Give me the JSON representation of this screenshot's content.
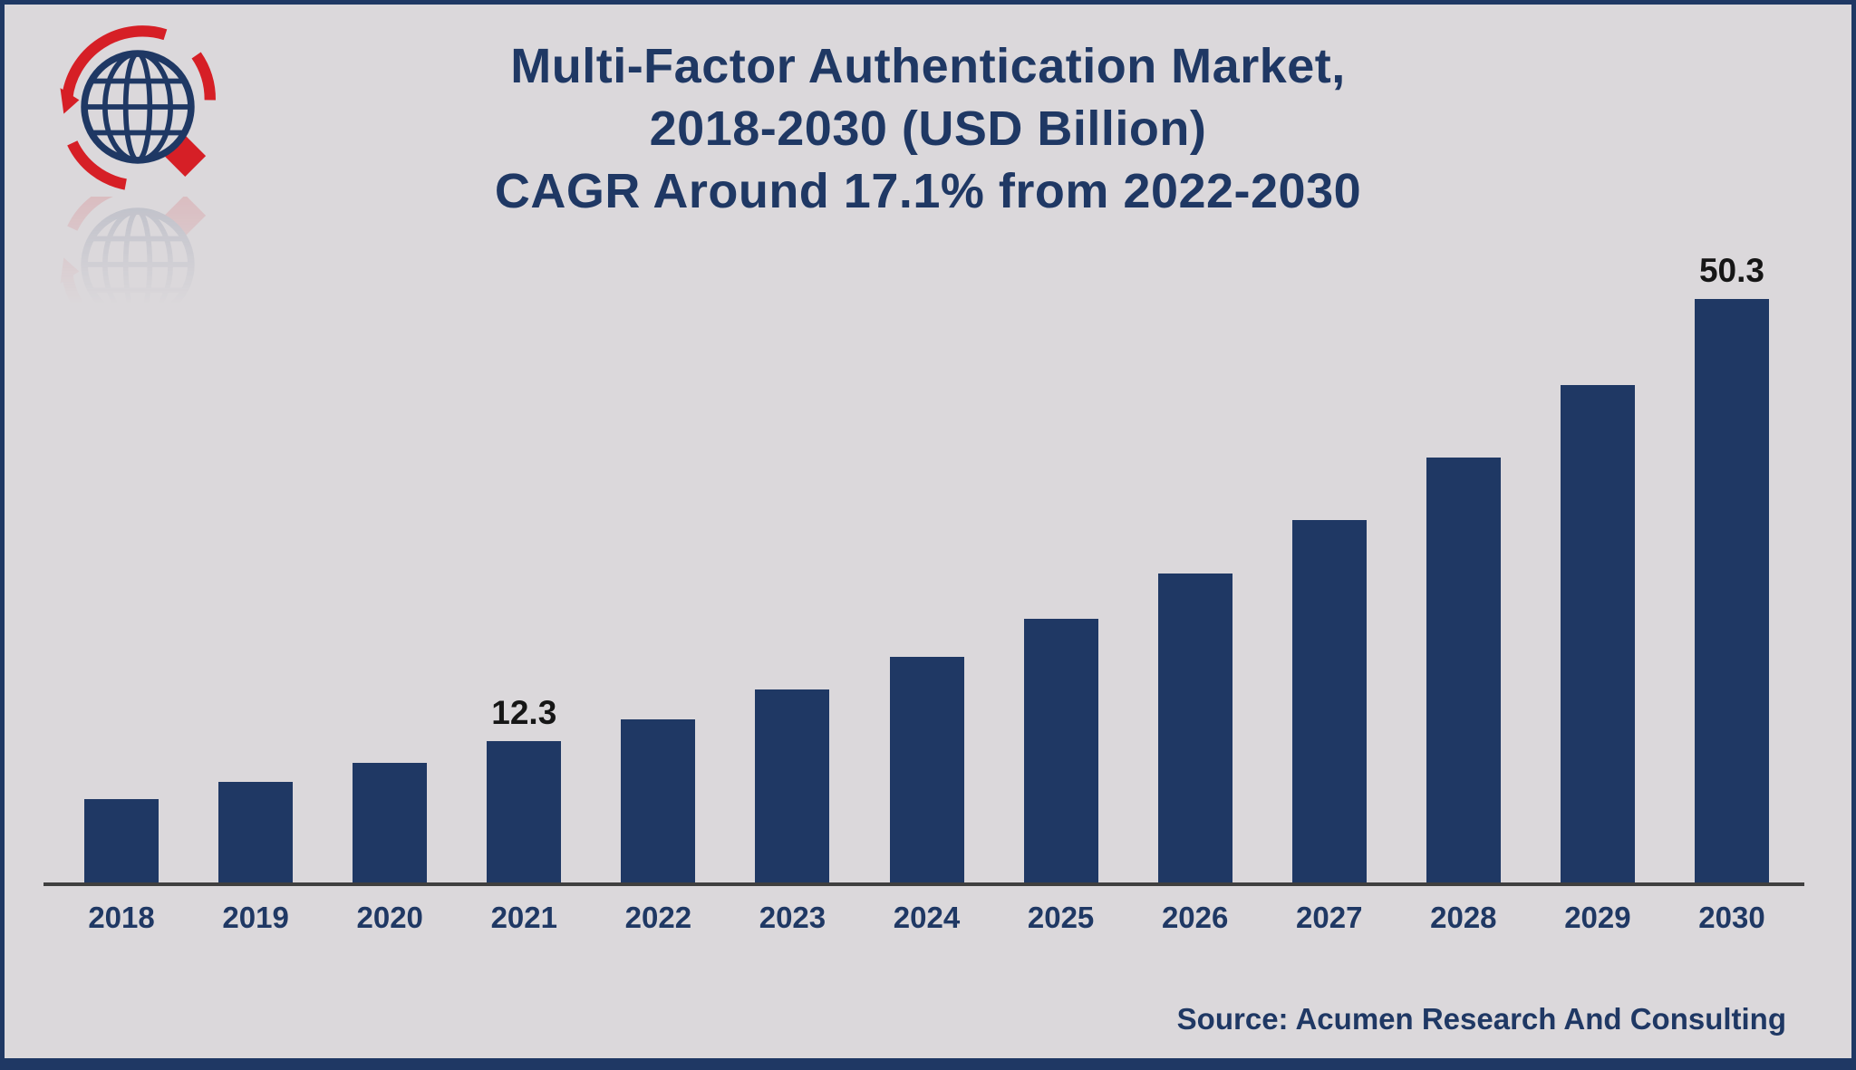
{
  "title": {
    "line1": "Multi-Factor Authentication Market,",
    "line2": "2018-2030 (USD Billion)",
    "line3": "CAGR Around 17.1% from 2022-2030"
  },
  "source": "Source: Acumen Research And Consulting",
  "colors": {
    "background": "#dbd8db",
    "border": "#1f3864",
    "bar": "#1f3864",
    "title_text": "#1f3864",
    "tick_label": "#1f3864",
    "value_label": "#161616",
    "axis": "#3f3f3f",
    "logo_blue": "#1f3864",
    "logo_red": "#d61f26"
  },
  "chart_data": {
    "type": "bar",
    "title": "Multi-Factor Authentication Market, 2018-2030 (USD Billion) CAGR Around 17.1% from 2022-2030",
    "categories": [
      "2018",
      "2019",
      "2020",
      "2021",
      "2022",
      "2023",
      "2024",
      "2025",
      "2026",
      "2027",
      "2028",
      "2029",
      "2030"
    ],
    "values": [
      7.3,
      8.8,
      10.4,
      12.3,
      14.2,
      16.7,
      19.5,
      22.8,
      26.7,
      31.3,
      36.7,
      42.9,
      50.3
    ],
    "value_labels": [
      "",
      "",
      "",
      "12.3",
      "",
      "",
      "",
      "",
      "",
      "",
      "",
      "",
      "50.3"
    ],
    "xlabel": "",
    "ylabel": "",
    "ylim": [
      0,
      52
    ],
    "grid": false,
    "legend": "none",
    "bar_color": "#1f3864"
  }
}
